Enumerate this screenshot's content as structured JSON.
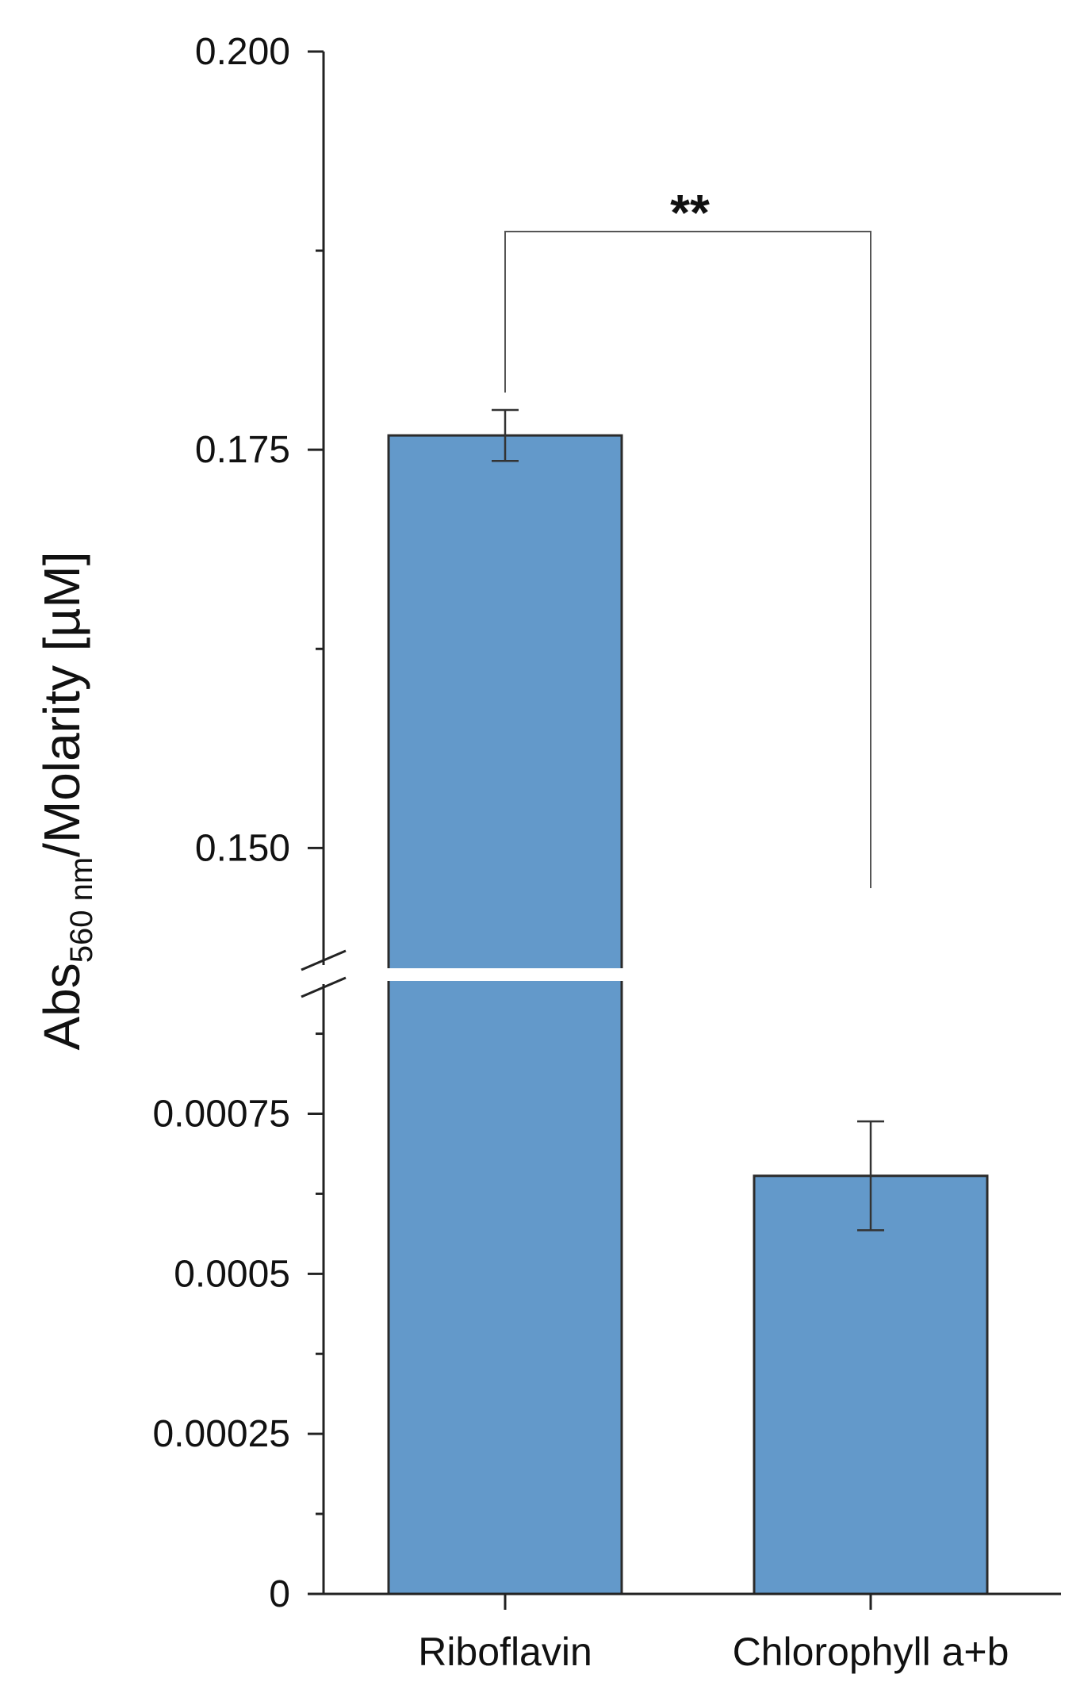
{
  "chart_data": {
    "type": "bar",
    "categories": [
      "Riboflavin",
      "Chlorophyll a+b"
    ],
    "values": [
      0.1759,
      0.000653
    ],
    "error": [
      0.0016,
      8.5e-05
    ],
    "colors": {
      "bar": "#6399ca",
      "bar_edge": "#2b2b2b",
      "axis": "#222222"
    },
    "ylabel_main": "Abs",
    "ylabel_sub": "560 nm",
    "ylabel_rest": "/Molarity [µM]",
    "y_axis_break": true,
    "lower_segment": {
      "ylim": [
        0,
        0.00095
      ],
      "ticks": [
        0,
        0.00025,
        0.0005,
        0.00075
      ],
      "tick_labels": [
        "0",
        "0.00025",
        "0.0005",
        "0.00075"
      ]
    },
    "upper_segment": {
      "ylim": [
        0.1427,
        0.2
      ],
      "ticks": [
        0.15,
        0.175,
        0.2
      ],
      "tick_labels": [
        "0.150",
        "0.175",
        "0.200"
      ]
    },
    "significance": {
      "label": "**",
      "between": [
        "Riboflavin",
        "Chlorophyll a+b"
      ]
    },
    "grid": false
  }
}
